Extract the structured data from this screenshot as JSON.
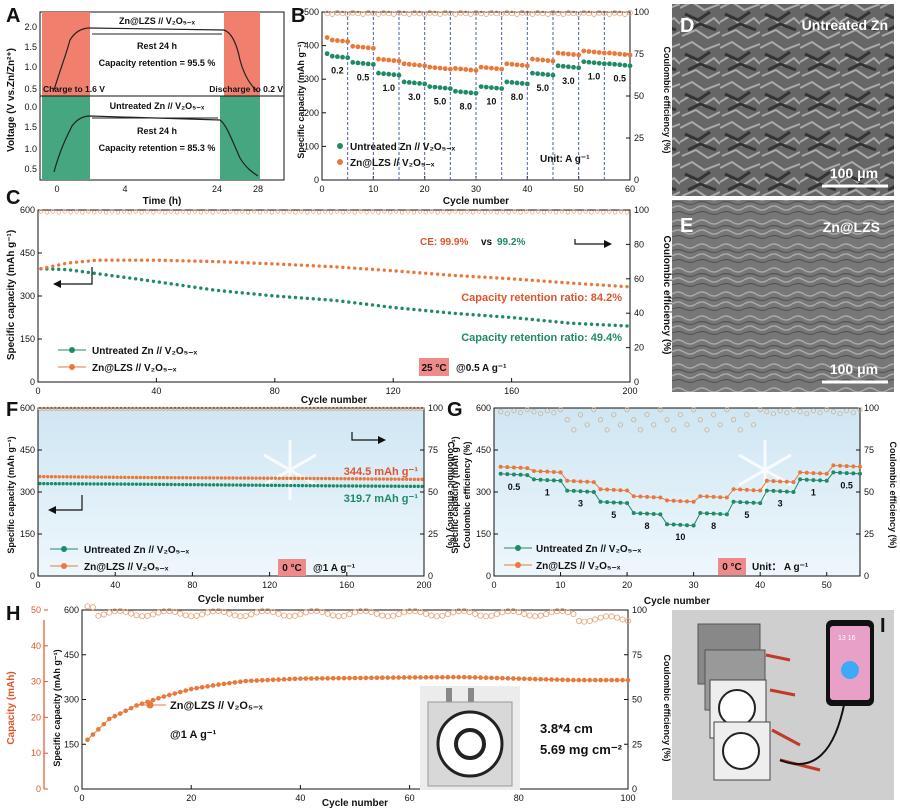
{
  "chart_data": [
    {
      "panel": "A",
      "type": "line",
      "xlabel": "Time (h)",
      "ylabel": "Voltage (V vs.Zn/Zn²⁺)",
      "xticks": [
        "0",
        "4",
        "24",
        "28"
      ],
      "yticks": [
        "0.0",
        "0.5",
        "1.0",
        "1.5",
        "2.0"
      ],
      "top": {
        "title": "Zn@LZS // V₂O₅₋ₓ",
        "rest": "Rest 24 h",
        "retention": "Capacity retention = 95.5 %"
      },
      "bottom": {
        "title": "Untreated Zn // V₂O₅₋ₓ",
        "rest": "Rest 24 h",
        "retention": "Capacity retention = 85.3 %"
      },
      "charge_label": "Charge to 1.6 V",
      "discharge_label": "Discharge to 0.2 V",
      "colors": {
        "top_fill": "#f0806d",
        "bottom_fill": "#46a680"
      }
    },
    {
      "panel": "B",
      "type": "scatter",
      "xlabel": "Cycle number",
      "ylabel": "Specific capacity (mAh g⁻¹)",
      "y2label": "Coulombic efficiency (%)",
      "xlim": [
        0,
        60
      ],
      "ylim": [
        0,
        500
      ],
      "y2lim": [
        0,
        100
      ],
      "xticks": [
        0,
        10,
        20,
        30,
        40,
        50,
        60
      ],
      "yticks": [
        0,
        100,
        200,
        300,
        400,
        500
      ],
      "y2ticks": [
        0,
        25,
        50,
        75,
        100
      ],
      "rates": [
        "0.2",
        "0.5",
        "1.0",
        "3.0",
        "5.0",
        "8.0",
        "10",
        "8.0",
        "5.0",
        "3.0",
        "1.0",
        "0.5"
      ],
      "unit": "Unit: A g⁻¹",
      "series": [
        {
          "name": "Untreated Zn // V₂O₅₋ₓ",
          "color": "#1e8a66",
          "values": [
            370,
            350,
            318,
            292,
            278,
            264,
            278,
            292,
            318,
            340,
            352,
            346
          ]
        },
        {
          "name": "Zn@LZS // V₂O₅₋ₓ",
          "color": "#e8793a",
          "values": [
            418,
            398,
            360,
            346,
            336,
            332,
            336,
            346,
            360,
            378,
            384,
            378
          ]
        }
      ],
      "ce": 99.5
    },
    {
      "panel": "C",
      "type": "line",
      "xlabel": "Cycle number",
      "ylabel": "Specific capacity (mAh g⁻¹)",
      "y2label": "Coulombic efficiency (%)",
      "xlim": [
        0,
        200
      ],
      "ylim": [
        0,
        600
      ],
      "y2lim": [
        0,
        100
      ],
      "xticks": [
        0,
        40,
        80,
        120,
        160,
        200
      ],
      "yticks": [
        0,
        150,
        300,
        450,
        600
      ],
      "y2ticks": [
        0,
        20,
        40,
        60,
        80,
        100
      ],
      "series": [
        {
          "name": "Untreated Zn // V₂O₅₋ₓ",
          "color": "#1e8a66",
          "x": [
            1,
            10,
            20,
            40,
            60,
            80,
            100,
            120,
            140,
            160,
            180,
            200
          ],
          "y": [
            395,
            392,
            378,
            350,
            320,
            300,
            285,
            260,
            240,
            225,
            205,
            195
          ]
        },
        {
          "name": "Zn@LZS // V₂O₅₋ₓ",
          "color": "#e8793a",
          "x": [
            1,
            10,
            20,
            40,
            60,
            80,
            100,
            120,
            140,
            160,
            180,
            200
          ],
          "y": [
            395,
            415,
            425,
            425,
            420,
            412,
            402,
            388,
            372,
            360,
            345,
            332
          ]
        }
      ],
      "ce_label": "CE: 99.9%",
      "ce_vs": "vs",
      "ce_other": "99.2%",
      "retention_lzs": "Capacity retention ratio: 84.2%",
      "retention_untreated": "Capacity retention ratio: 49.4%",
      "temperature": "25 °C",
      "rate": "@0.5 A g⁻¹"
    },
    {
      "panel": "F",
      "type": "line",
      "xlabel": "Cycle number",
      "ylabel": "Specific capacity (mAh g⁻¹)",
      "y2label": "Coulombic efficiency (%)",
      "xlim": [
        0,
        200
      ],
      "ylim": [
        0,
        600
      ],
      "y2lim": [
        0,
        100
      ],
      "xticks": [
        0,
        40,
        80,
        120,
        160,
        200
      ],
      "yticks": [
        0,
        150,
        300,
        450,
        600
      ],
      "y2ticks": [
        0,
        25,
        50,
        75,
        100
      ],
      "series": [
        {
          "name": "Untreated Zn // V₂O₅₋ₓ",
          "color": "#1e8a66",
          "x": [
            1,
            50,
            100,
            150,
            200
          ],
          "y": [
            330,
            328,
            325,
            322,
            320
          ]
        },
        {
          "name": "Zn@LZS // V₂O₅₋ₓ",
          "color": "#e8793a",
          "x": [
            1,
            50,
            100,
            150,
            200
          ],
          "y": [
            355,
            352,
            350,
            348,
            345
          ]
        }
      ],
      "label_lzs": "344.5 mAh g⁻¹",
      "label_untreated": "319.7 mAh g⁻¹",
      "temperature": "0 °C",
      "rate": "@1 A g⁻¹"
    },
    {
      "panel": "G",
      "type": "line",
      "xlabel": "Cycle number",
      "ylabel": "Specific capacity (mAh g⁻¹)",
      "y2label": "Coulombic efficiency (%)",
      "xlim": [
        0,
        55
      ],
      "ylim": [
        0,
        600
      ],
      "y2lim": [
        0,
        100
      ],
      "xticks": [
        0,
        10,
        20,
        30,
        40,
        50
      ],
      "yticks": [
        0,
        150,
        300,
        450,
        600
      ],
      "y2ticks": [
        0,
        25,
        50,
        75,
        100
      ],
      "rates": [
        "0.5",
        "1",
        "3",
        "5",
        "8",
        "10",
        "8",
        "5",
        "3",
        "1",
        "0.5"
      ],
      "series": [
        {
          "name": "Untreated Zn // V₂O₅₋ₓ",
          "color": "#1e8a66",
          "values": [
            365,
            345,
            305,
            265,
            225,
            185,
            225,
            265,
            305,
            345,
            370
          ]
        },
        {
          "name": "Zn@LZS // V₂O₅₋ₓ",
          "color": "#e8793a",
          "values": [
            390,
            375,
            340,
            310,
            285,
            270,
            285,
            310,
            340,
            370,
            395
          ]
        }
      ],
      "temperature": "0 °C",
      "unit": "Unit： A g⁻¹"
    },
    {
      "panel": "H",
      "type": "scatter",
      "xlabel": "Cycle number",
      "ylabel": "Specific capacity (mAh g⁻¹)",
      "y2label": "Coulombic efficiency (%)",
      "y3label": "Capacity (mAh)",
      "xlim": [
        0,
        100
      ],
      "ylim": [
        0,
        600
      ],
      "y2lim": [
        0,
        100
      ],
      "y3lim": [
        0,
        50
      ],
      "xticks": [
        0,
        20,
        40,
        60,
        80,
        100
      ],
      "yticks": [
        0,
        150,
        300,
        450,
        600
      ],
      "y2ticks": [
        0,
        25,
        50,
        75,
        100
      ],
      "y3ticks": [
        0,
        10,
        20,
        30,
        40,
        50
      ],
      "series": [
        {
          "name": "Zn@LZS // V₂O₅₋ₓ",
          "color": "#e8793a",
          "x": [
            1,
            5,
            10,
            15,
            20,
            25,
            30,
            40,
            50,
            60,
            70,
            80,
            90,
            100
          ],
          "y": [
            165,
            235,
            280,
            310,
            335,
            350,
            362,
            370,
            372,
            374,
            375,
            370,
            365,
            365
          ]
        }
      ],
      "rate": "@1 A g⁻¹",
      "size": "3.8*4 cm",
      "loading": "5.69 mg cm⁻²"
    }
  ],
  "images": {
    "D": {
      "label": "Untreated Zn",
      "scale": "100 μm"
    },
    "E": {
      "label": "Zn@LZS",
      "scale": "100 μm"
    },
    "I": {
      "phone_time": "13 16"
    }
  },
  "panel_letters": [
    "A",
    "B",
    "C",
    "D",
    "E",
    "F",
    "G",
    "H",
    "I"
  ]
}
